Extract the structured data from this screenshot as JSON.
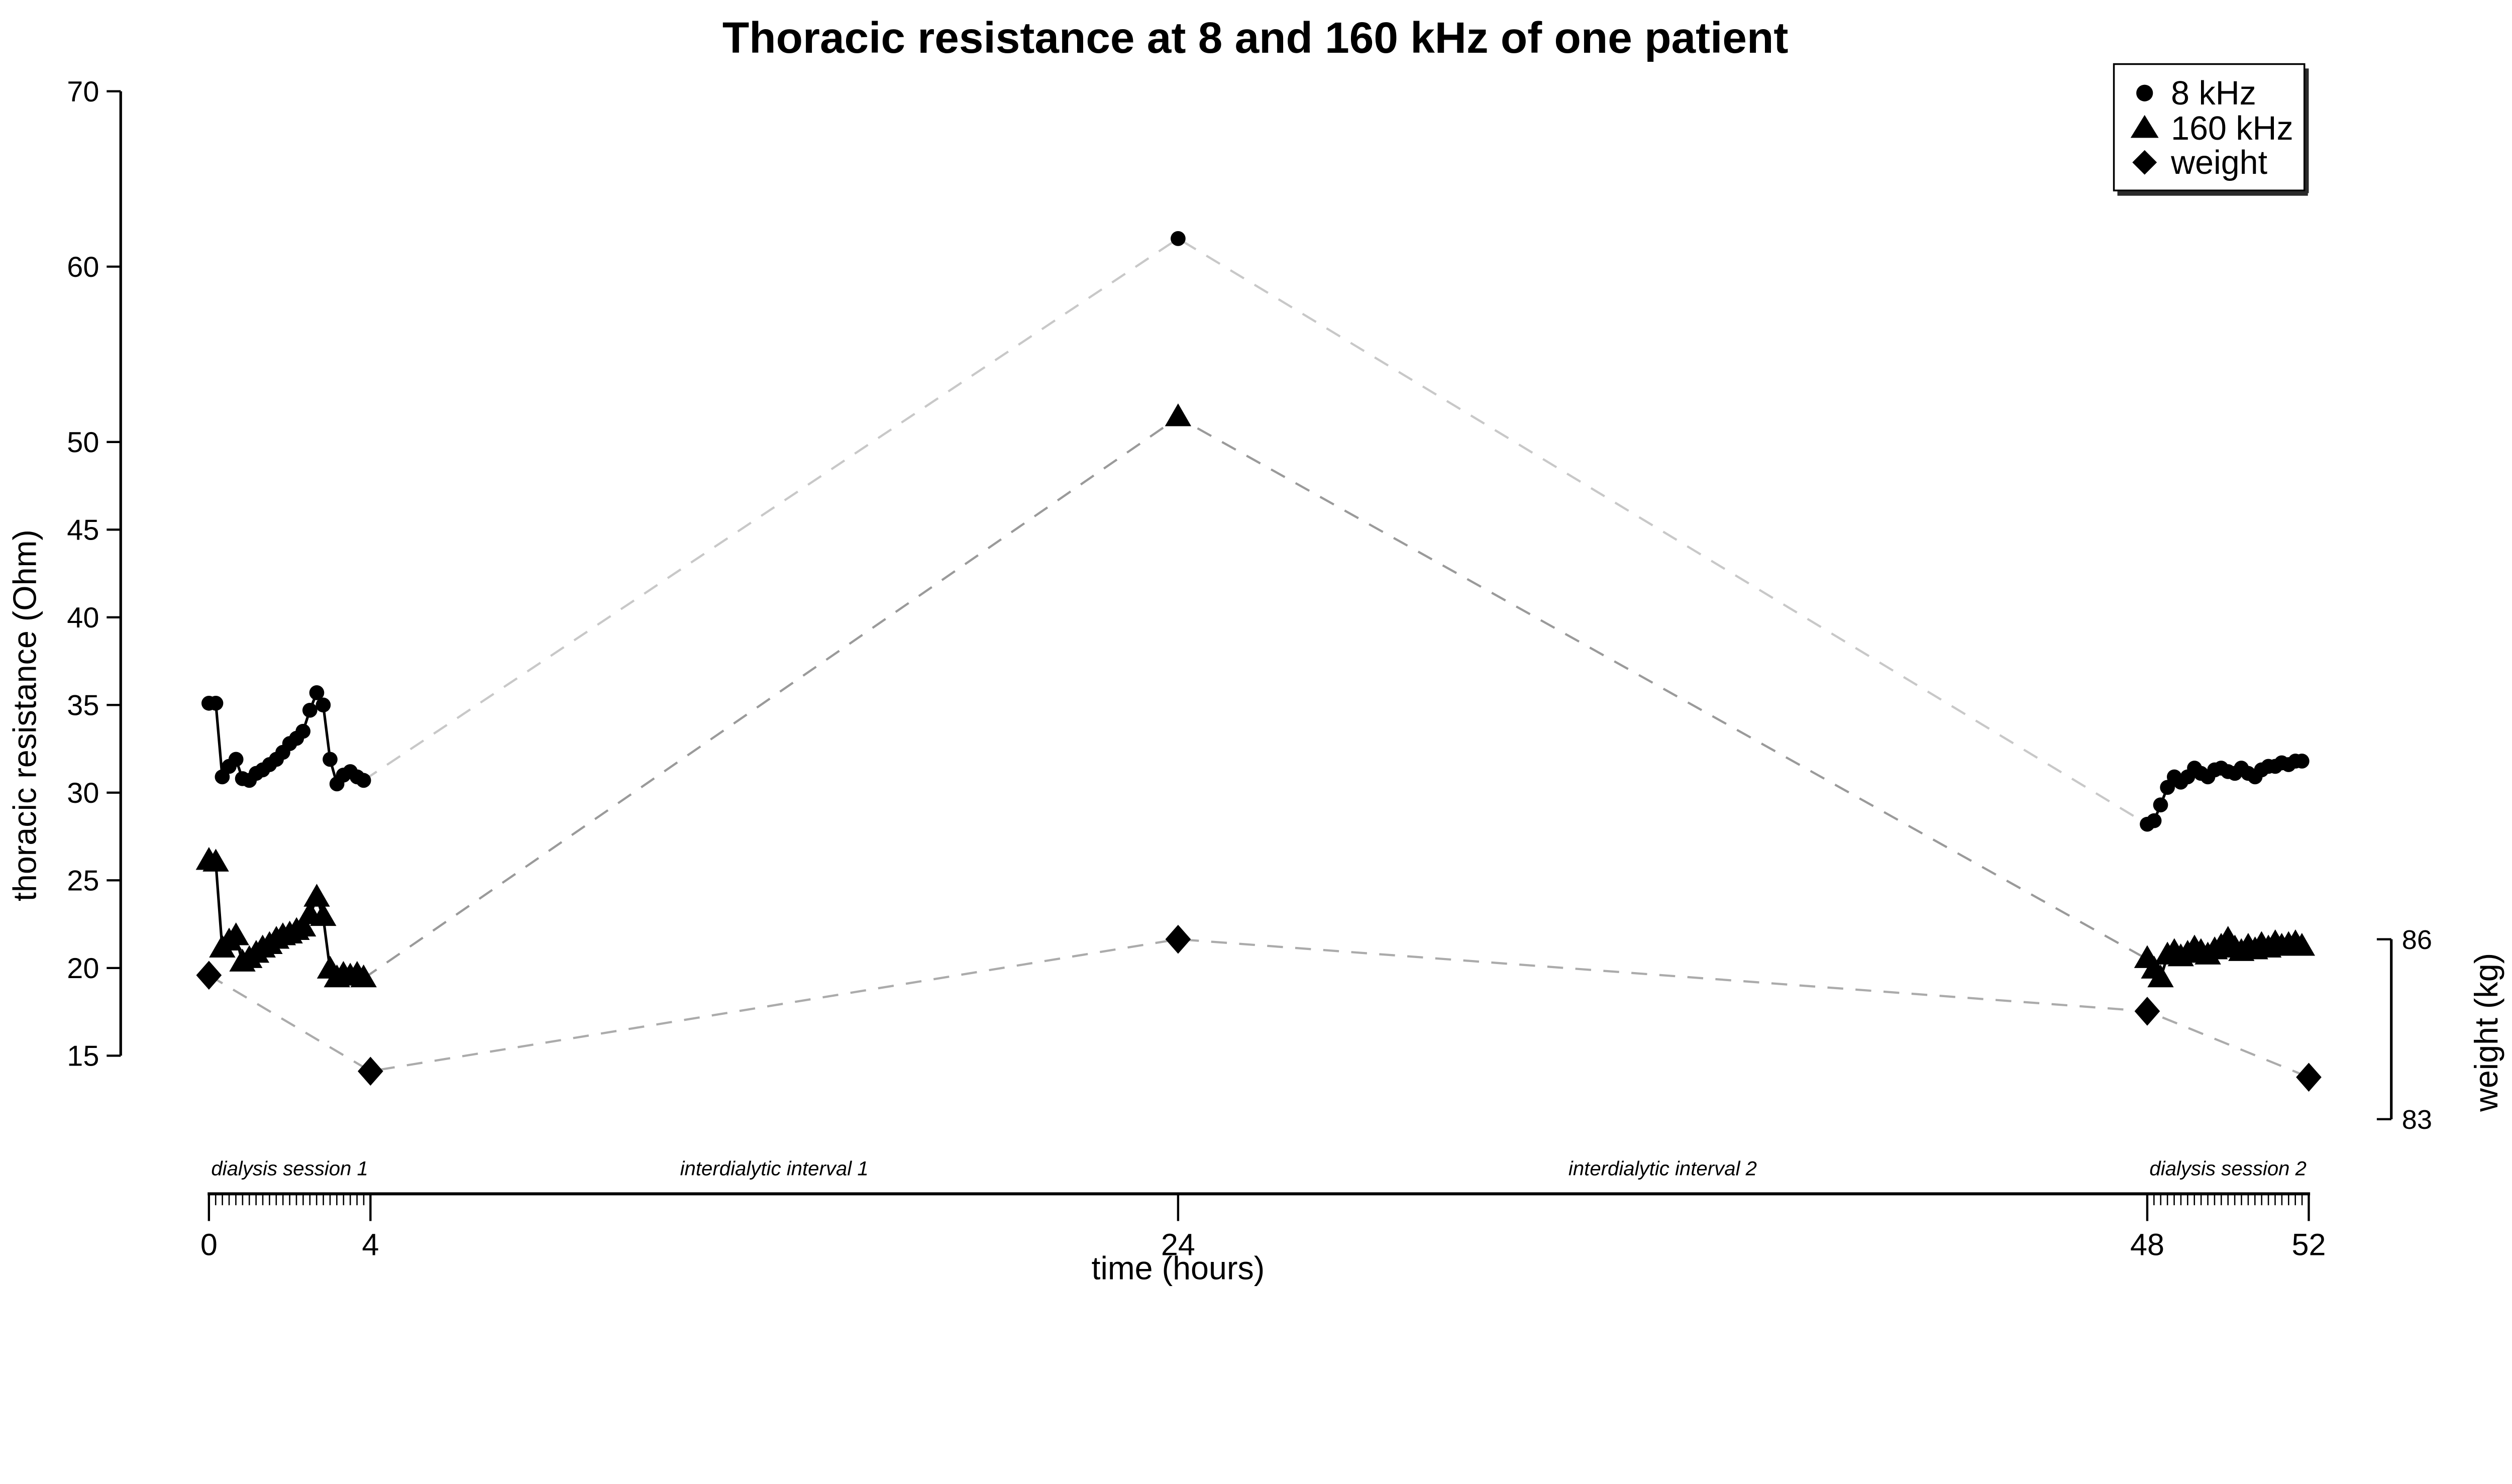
{
  "title": "Thoracic resistance at 8 and 160 kHz of one patient",
  "axes": {
    "y_left": {
      "label": "thoracic resistance (Ohm)",
      "ticks": [
        15,
        20,
        25,
        30,
        35,
        40,
        45,
        50,
        60,
        70
      ],
      "range": [
        15,
        70
      ]
    },
    "y_right": {
      "label": "weight (kg)",
      "ticks": [
        83,
        86
      ],
      "range": [
        83,
        86
      ]
    },
    "x": {
      "label": "time (hours)",
      "major_ticks": [
        0,
        4,
        24,
        48,
        52
      ],
      "minor_tick_step_hours": 0.167,
      "minor_tick_ranges": [
        [
          0,
          4
        ],
        [
          48,
          52
        ]
      ],
      "range": [
        0,
        52
      ]
    }
  },
  "annotations": [
    {
      "text": "dialysis session 1",
      "center_t": 2
    },
    {
      "text": "interdialytic interval 1",
      "center_t": 14
    },
    {
      "text": "interdialytic interval 2",
      "center_t": 36
    },
    {
      "text": "dialysis session 2",
      "center_t": 50
    }
  ],
  "legend": {
    "items": [
      {
        "marker": "circle-icon",
        "label": "8 kHz"
      },
      {
        "marker": "triangle-icon",
        "label": "160 kHz"
      },
      {
        "marker": "diamond-icon",
        "label": "weight"
      }
    ]
  },
  "colors": {
    "series": "#000000",
    "connector_8khz": "#c8c8c8",
    "connector_160khz": "#9a9a9a",
    "connector_weight": "#ababab",
    "background": "#ffffff"
  },
  "chart_data": {
    "type": "line",
    "title": "Thoracic resistance at 8 and 160 kHz of one patient",
    "xlabel": "time (hours)",
    "ylabel_left": "thoracic resistance (Ohm)",
    "ylabel_right": "weight (kg)",
    "xlim": [
      0,
      52
    ],
    "ylim_left": [
      15,
      70
    ],
    "ylim_right": [
      83,
      86
    ],
    "grid": false,
    "legend_position": "top-right",
    "series": [
      {
        "name": "8 kHz",
        "marker": "circle",
        "y_axis": "left",
        "line_style_sessions": "solid",
        "line_style_connector": "dashed",
        "session1": [
          [
            0,
            35.1
          ],
          [
            0.17,
            35.1
          ],
          [
            0.33,
            30.9
          ],
          [
            0.5,
            31.5
          ],
          [
            0.67,
            31.9
          ],
          [
            0.83,
            30.8
          ],
          [
            1,
            30.7
          ],
          [
            1.17,
            31.1
          ],
          [
            1.33,
            31.3
          ],
          [
            1.5,
            31.6
          ],
          [
            1.67,
            31.9
          ],
          [
            1.83,
            32.3
          ],
          [
            2,
            32.8
          ],
          [
            2.17,
            33.1
          ],
          [
            2.33,
            33.5
          ],
          [
            2.5,
            34.7
          ],
          [
            2.67,
            35.7
          ],
          [
            2.83,
            35.0
          ],
          [
            3,
            31.9
          ],
          [
            3.17,
            30.5
          ],
          [
            3.33,
            31.0
          ],
          [
            3.5,
            31.2
          ],
          [
            3.67,
            30.9
          ],
          [
            3.83,
            30.7
          ]
        ],
        "interdialytic_point": [
          24,
          61.6
        ],
        "session2": [
          [
            48,
            28.2
          ],
          [
            48.17,
            28.4
          ],
          [
            48.33,
            29.3
          ],
          [
            48.5,
            30.3
          ],
          [
            48.67,
            30.9
          ],
          [
            48.83,
            30.6
          ],
          [
            49,
            30.9
          ],
          [
            49.17,
            31.4
          ],
          [
            49.33,
            31.1
          ],
          [
            49.5,
            30.9
          ],
          [
            49.67,
            31.3
          ],
          [
            49.83,
            31.4
          ],
          [
            50,
            31.2
          ],
          [
            50.17,
            31.1
          ],
          [
            50.33,
            31.4
          ],
          [
            50.5,
            31.1
          ],
          [
            50.67,
            30.9
          ],
          [
            50.83,
            31.3
          ],
          [
            51,
            31.5
          ],
          [
            51.17,
            31.5
          ],
          [
            51.33,
            31.7
          ],
          [
            51.5,
            31.6
          ],
          [
            51.67,
            31.8
          ],
          [
            51.83,
            31.8
          ]
        ]
      },
      {
        "name": "160 kHz",
        "marker": "triangle",
        "y_axis": "left",
        "line_style_sessions": "solid",
        "line_style_connector": "dashed",
        "session1": [
          [
            0,
            26.1
          ],
          [
            0.17,
            26.0
          ],
          [
            0.33,
            21.1
          ],
          [
            0.5,
            21.5
          ],
          [
            0.67,
            21.8
          ],
          [
            0.83,
            20.3
          ],
          [
            1,
            20.5
          ],
          [
            1.17,
            20.8
          ],
          [
            1.33,
            21.1
          ],
          [
            1.5,
            21.3
          ],
          [
            1.67,
            21.6
          ],
          [
            1.83,
            21.8
          ],
          [
            2,
            21.9
          ],
          [
            2.17,
            22.1
          ],
          [
            2.33,
            22.3
          ],
          [
            2.5,
            23.0
          ],
          [
            2.67,
            24.0
          ],
          [
            2.83,
            22.9
          ],
          [
            3,
            19.9
          ],
          [
            3.17,
            19.4
          ],
          [
            3.33,
            19.6
          ],
          [
            3.5,
            19.5
          ],
          [
            3.67,
            19.6
          ],
          [
            3.83,
            19.4
          ]
        ],
        "interdialytic_point": [
          24,
          51.4
        ],
        "session2": [
          [
            48,
            20.5
          ],
          [
            48.17,
            19.9
          ],
          [
            48.33,
            19.4
          ],
          [
            48.5,
            20.7
          ],
          [
            48.67,
            20.9
          ],
          [
            48.83,
            20.6
          ],
          [
            49,
            20.8
          ],
          [
            49.17,
            21.1
          ],
          [
            49.33,
            20.9
          ],
          [
            49.5,
            20.7
          ],
          [
            49.67,
            21.0
          ],
          [
            49.83,
            21.2
          ],
          [
            50,
            21.6
          ],
          [
            50.17,
            21.1
          ],
          [
            50.33,
            20.9
          ],
          [
            50.5,
            21.2
          ],
          [
            50.67,
            21.0
          ],
          [
            50.83,
            21.3
          ],
          [
            51,
            21.1
          ],
          [
            51.17,
            21.4
          ],
          [
            51.33,
            21.2
          ],
          [
            51.5,
            21.3
          ],
          [
            51.67,
            21.4
          ],
          [
            51.83,
            21.2
          ]
        ]
      },
      {
        "name": "weight",
        "marker": "diamond",
        "y_axis": "right",
        "line_style": "dashed",
        "points": [
          [
            0,
            85.4
          ],
          [
            4,
            83.8
          ],
          [
            24,
            86.0
          ],
          [
            48,
            84.8
          ],
          [
            52,
            83.7
          ]
        ]
      }
    ]
  }
}
